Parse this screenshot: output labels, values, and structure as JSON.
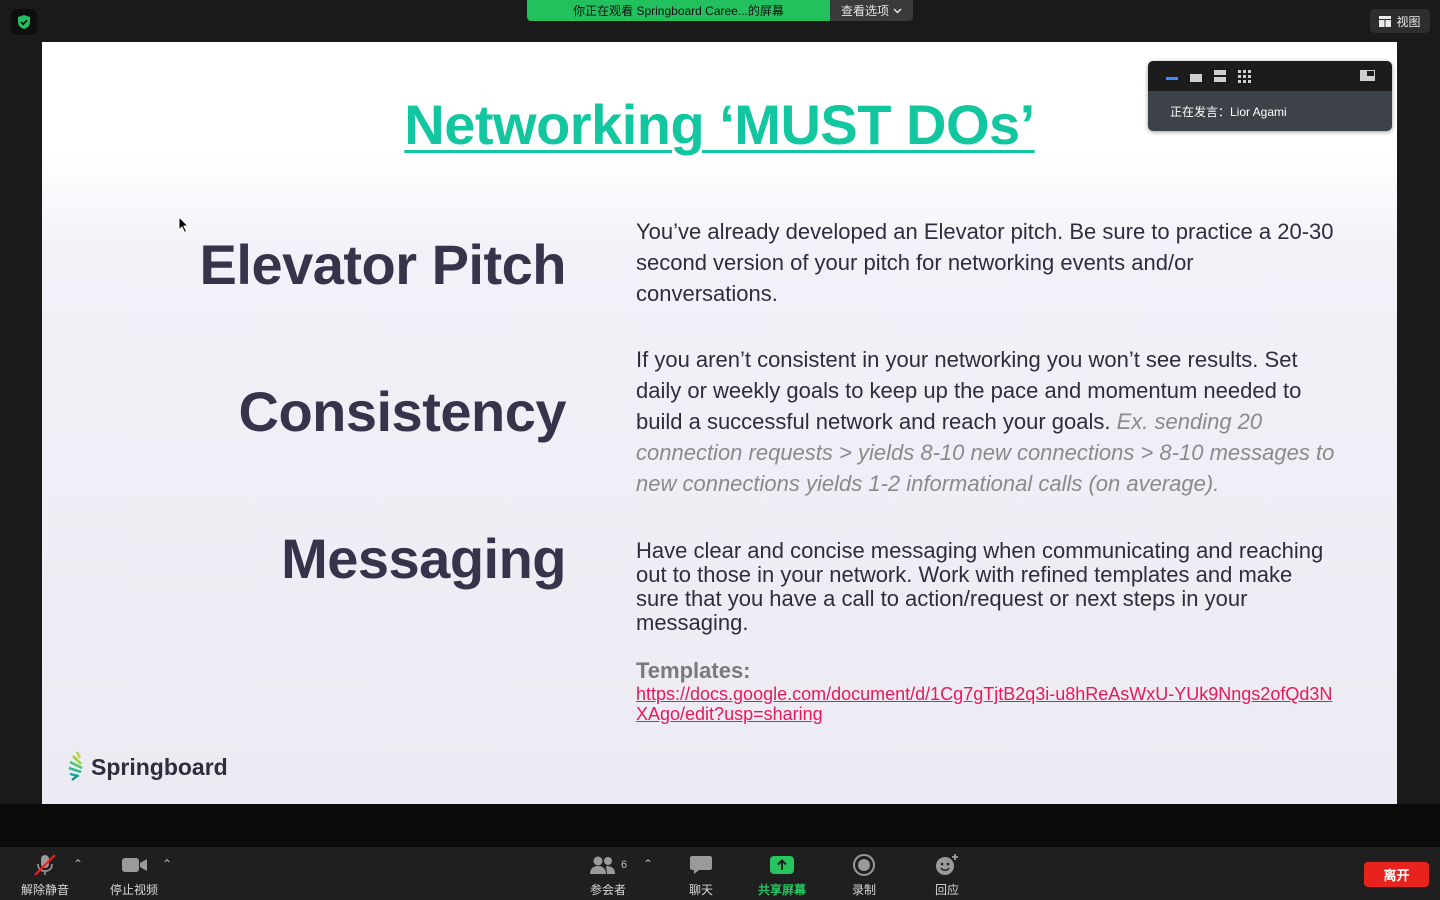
{
  "topbar": {
    "viewing_banner": "你正在观看 Springboard Caree...的屏幕",
    "view_options_label": "查看选项",
    "view_button_label": "视图"
  },
  "speaker_panel": {
    "speaking_text": "正在发言：Lior Agami"
  },
  "slide": {
    "title": "Networking ‘MUST DOs’",
    "items": [
      {
        "term": "Elevator Pitch",
        "description": "You’ve already developed an Elevator pitch. Be sure to practice a 20-30 second version of your pitch for networking events and/or conversations."
      },
      {
        "term": "Consistency",
        "description": "If you aren’t consistent in your networking you won’t see results. Set daily or weekly goals to keep up the pace and momentum needed to build a successful network and reach your goals.",
        "example": "Ex. sending 20 connection requests > yields 8-10 new connections > 8-10 messages to new connections yields 1-2 informational calls (on average)."
      },
      {
        "term": "Messaging",
        "description": "Have clear and concise messaging when communicating and reaching out to those in your network. Work with refined templates and make sure that you have a call to action/request or next steps in your messaging."
      }
    ],
    "templates_label": "Templates:",
    "templates_link": "https://docs.google.com/document/d/1Cg7gTjtB2q3i-u8hReAsWxU-YUk9Nngs2ofQd3NXAgo/edit?usp=sharing",
    "logo_text": "Springboard",
    "colors": {
      "title": "#12c6a0",
      "link": "#e8195a",
      "term": "#36334a"
    }
  },
  "toolbar": {
    "unmute_label": "解除静音",
    "stop_video_label": "停止视频",
    "participants_label": "参会者",
    "participants_count": "6",
    "chat_label": "聊天",
    "share_label": "共享屏幕",
    "record_label": "录制",
    "reactions_label": "回应",
    "leave_label": "离开"
  },
  "icons": [
    "shield-icon",
    "chevron-down-icon",
    "grid-view-icon",
    "mic-muted-icon",
    "video-camera-icon",
    "participants-icon",
    "chat-icon",
    "share-screen-icon",
    "record-icon",
    "reaction-icon",
    "cursor-icon",
    "springboard-logo-icon"
  ]
}
